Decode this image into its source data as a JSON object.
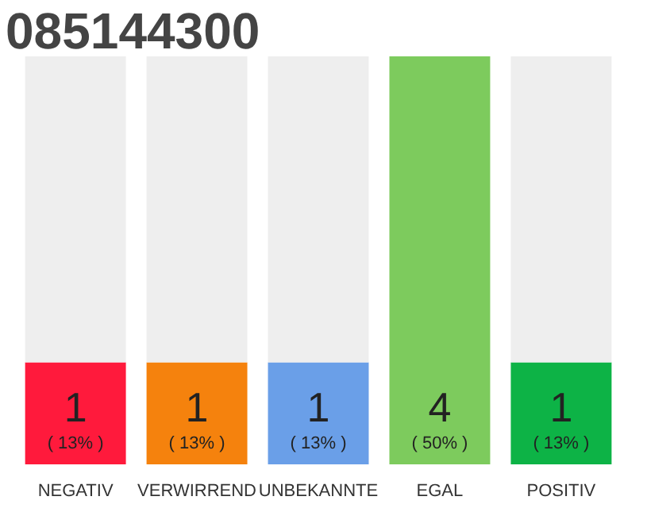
{
  "chart_data": {
    "type": "bar",
    "title": "085144300",
    "categories": [
      "NEGATIV",
      "VERWIRREND",
      "UNBEKANNTE",
      "EGAL",
      "POSITIV"
    ],
    "stacked": true,
    "grid": false,
    "annotations": [
      "( 13% )",
      "( 13% )",
      "( 13% )",
      "( 50% )",
      "( 13% )"
    ],
    "series": [
      {
        "colors": [
          "#ff1a3c",
          "#f5820d",
          "#6a9fe8",
          "#7dcb5d",
          "#0db346"
        ],
        "values": [
          1,
          1,
          1,
          4,
          1
        ],
        "value_labels": [
          "1",
          "1",
          "1",
          "4",
          "1"
        ]
      },
      {
        "color": "#eeeeee",
        "values": [
          3,
          3,
          3,
          0,
          3
        ]
      }
    ]
  }
}
